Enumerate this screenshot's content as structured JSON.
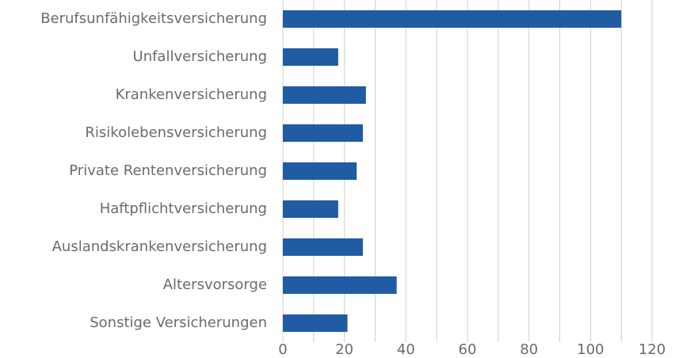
{
  "chart_data": {
    "type": "barh",
    "categories": [
      "Berufsunfähigkeitsversicherung",
      "Unfallversicherung",
      "Krankenversicherung",
      "Risikolebensversicherung",
      "Private Rentenversicherung",
      "Haftpflichtversicherung",
      "Auslandskrankenversicherung",
      "Altersvorsorge",
      "Sonstige Versicherungen"
    ],
    "values": [
      110,
      18,
      27,
      26,
      24,
      18,
      26,
      37,
      21
    ],
    "color": "#1f5ca3",
    "xlim": [
      0,
      120
    ],
    "xticks": [
      0,
      20,
      40,
      60,
      80,
      100,
      120
    ],
    "minor_xticks": [
      10,
      30,
      50,
      70,
      90,
      110
    ],
    "grid": true
  }
}
